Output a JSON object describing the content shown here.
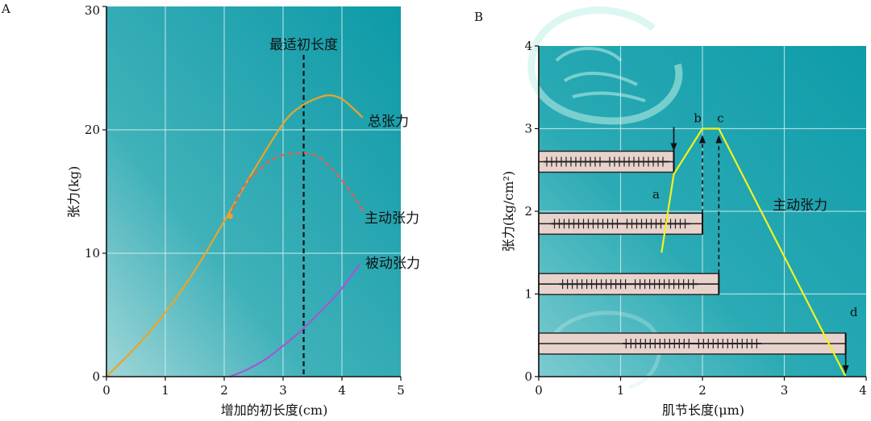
{
  "chart_data": [
    {
      "panel_label": "A",
      "type": "line",
      "xlabel": "增加的初长度(cm)",
      "ylabel": "张力(kg)",
      "xlim": [
        0,
        5
      ],
      "ylim": [
        0,
        30
      ],
      "xticks": [
        "0",
        "1",
        "2",
        "3",
        "4",
        "5"
      ],
      "yticks": [
        "0",
        "10",
        "20",
        "30"
      ],
      "grid": true,
      "series": [
        {
          "name": "总张力",
          "color": "#e8a52a",
          "style": "solid",
          "x": [
            0,
            0.5,
            1,
            1.5,
            2,
            2.5,
            3,
            3.3,
            3.6,
            3.8,
            4.0,
            4.2,
            4.35
          ],
          "y": [
            0,
            2.4,
            5.2,
            8.6,
            12.6,
            16.7,
            20.5,
            21.9,
            22.6,
            22.8,
            22.5,
            21.7,
            21.0
          ]
        },
        {
          "name": "主动张力",
          "color": "#e8604a",
          "style": "dashed",
          "x": [
            2.1,
            2.3,
            2.6,
            2.9,
            3.2,
            3.4,
            3.6,
            3.8,
            4.0,
            4.2,
            4.4
          ],
          "y": [
            13.0,
            15.2,
            16.8,
            17.8,
            18.1,
            18.1,
            17.8,
            17.0,
            15.9,
            14.6,
            13.2
          ]
        },
        {
          "name": "被动张力",
          "color": "#a05ad0",
          "style": "solid",
          "x": [
            2.1,
            2.4,
            2.7,
            3.0,
            3.3,
            3.6,
            3.9,
            4.1,
            4.3
          ],
          "y": [
            0,
            0.6,
            1.4,
            2.5,
            3.7,
            5.1,
            6.6,
            7.8,
            9.1
          ]
        }
      ],
      "annotations": [
        {
          "text": "最适初长度",
          "x": 3.35
        }
      ]
    },
    {
      "panel_label": "B",
      "type": "line",
      "xlabel": "肌节长度(μm)",
      "ylabel": "张力(kg/cm²)",
      "xlim": [
        0,
        4
      ],
      "ylim": [
        0,
        4
      ],
      "xticks": [
        "0",
        "1",
        "2",
        "3",
        "4"
      ],
      "yticks": [
        "0",
        "1",
        "2",
        "3",
        "4"
      ],
      "grid": true,
      "series": [
        {
          "name": "主动张力",
          "color": "#f2f21e",
          "style": "solid",
          "x": [
            1.5,
            1.65,
            2.0,
            2.2,
            3.75
          ],
          "y": [
            1.5,
            2.45,
            3.0,
            3.0,
            0.0
          ]
        }
      ],
      "point_labels": [
        {
          "text": "a",
          "x": 1.65,
          "y": 2.45
        },
        {
          "text": "b",
          "x": 2.0,
          "y": 3.0
        },
        {
          "text": "c",
          "x": 2.2,
          "y": 3.0
        },
        {
          "text": "d",
          "x": 3.75,
          "y": 0.4
        }
      ],
      "sarcomeres": [
        {
          "y": 2.6,
          "length": 1.65
        },
        {
          "y": 1.85,
          "length": 2.0
        },
        {
          "y": 1.12,
          "length": 2.2
        },
        {
          "y": 0.4,
          "length": 3.75
        }
      ]
    }
  ]
}
